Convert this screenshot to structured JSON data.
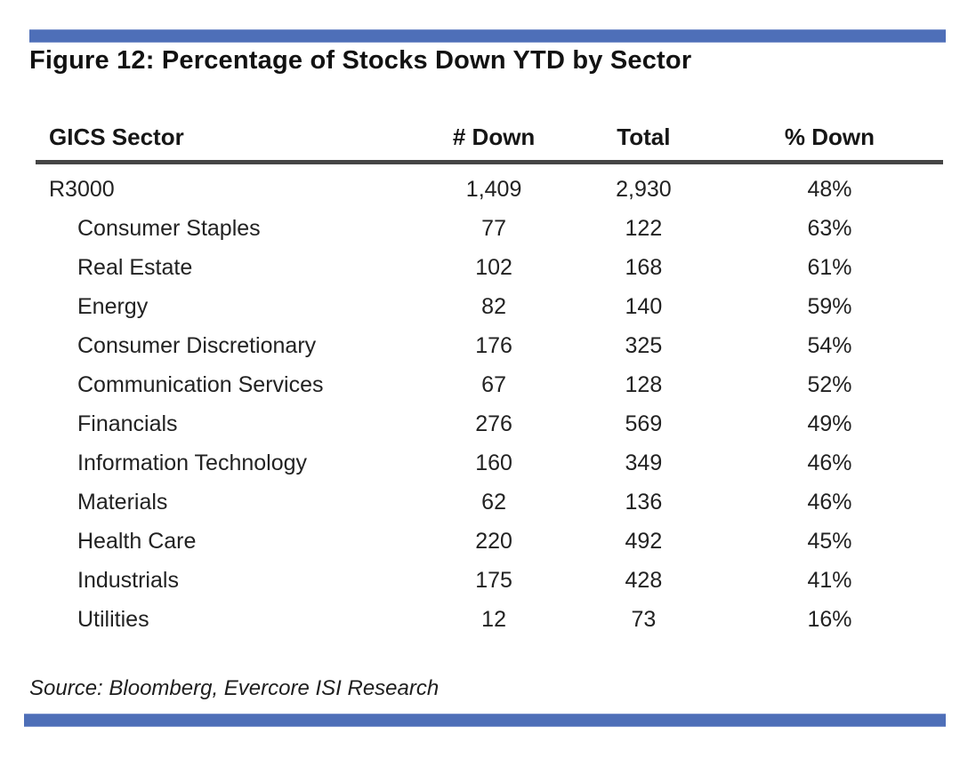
{
  "figure": {
    "title": "Figure 12: Percentage of Stocks Down YTD by Sector",
    "source": "Source: Bloomberg, Evercore ISI Research"
  },
  "chart_data": {
    "type": "table",
    "title": "Figure 12: Percentage of Stocks Down YTD by Sector",
    "columns": [
      "GICS Sector",
      "# Down",
      "Total",
      "% Down"
    ],
    "rows": [
      {
        "sector": "R3000",
        "num_down": "1,409",
        "total": "2,930",
        "pct_down": "48%",
        "indent": false
      },
      {
        "sector": "Consumer Staples",
        "num_down": "77",
        "total": "122",
        "pct_down": "63%",
        "indent": true
      },
      {
        "sector": "Real Estate",
        "num_down": "102",
        "total": "168",
        "pct_down": "61%",
        "indent": true
      },
      {
        "sector": "Energy",
        "num_down": "82",
        "total": "140",
        "pct_down": "59%",
        "indent": true
      },
      {
        "sector": "Consumer Discretionary",
        "num_down": "176",
        "total": "325",
        "pct_down": "54%",
        "indent": true
      },
      {
        "sector": "Communication Services",
        "num_down": "67",
        "total": "128",
        "pct_down": "52%",
        "indent": true
      },
      {
        "sector": "Financials",
        "num_down": "276",
        "total": "569",
        "pct_down": "49%",
        "indent": true
      },
      {
        "sector": "Information Technology",
        "num_down": "160",
        "total": "349",
        "pct_down": "46%",
        "indent": true
      },
      {
        "sector": "Materials",
        "num_down": "62",
        "total": "136",
        "pct_down": "46%",
        "indent": true
      },
      {
        "sector": "Health Care",
        "num_down": "220",
        "total": "492",
        "pct_down": "45%",
        "indent": true
      },
      {
        "sector": "Industrials",
        "num_down": "175",
        "total": "428",
        "pct_down": "41%",
        "indent": true
      },
      {
        "sector": "Utilities",
        "num_down": "12",
        "total": "73",
        "pct_down": "16%",
        "indent": true
      }
    ],
    "source_note": "Source: Bloomberg, Evercore ISI Research"
  },
  "colors": {
    "accent_bar_blue": "#4e6fb8",
    "header_rule": "#454545",
    "text": "#1c1c1c"
  }
}
